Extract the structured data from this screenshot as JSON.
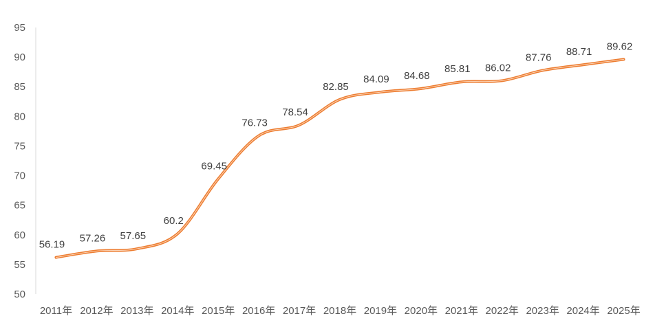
{
  "chart_data": {
    "type": "line",
    "title": "",
    "xlabel": "",
    "ylabel": "",
    "categories": [
      "2011年",
      "2012年",
      "2013年",
      "2014年",
      "2015年",
      "2016年",
      "2017年",
      "2018年",
      "2019年",
      "2020年",
      "2021年",
      "2022年",
      "2023年",
      "2024年",
      "2025年"
    ],
    "series": [
      {
        "values": [
          56.19,
          57.26,
          57.65,
          60.2,
          69.45,
          76.73,
          78.54,
          82.85,
          84.09,
          84.68,
          85.81,
          86.02,
          87.76,
          88.71,
          89.62
        ],
        "labels": [
          "56.19",
          "57.26",
          "57.65",
          "60.2",
          "69.45",
          "76.73",
          "78.54",
          "82.85",
          "84.09",
          "84.68",
          "85.81",
          "86.02",
          "87.76",
          "88.71",
          "89.62"
        ],
        "color": "#ED7D31",
        "smooth": true,
        "data_labels": true
      }
    ],
    "ylim": [
      50,
      95
    ],
    "yticks": [
      50,
      55,
      60,
      65,
      70,
      75,
      80,
      85,
      90,
      95
    ],
    "ytick_labels": [
      "50",
      "55",
      "60",
      "65",
      "70",
      "75",
      "80",
      "85",
      "90",
      "95"
    ],
    "grid": false,
    "legend": "none",
    "colors": {
      "line": "#ED7D31",
      "axis": "#D9D9D9",
      "tick_text": "#595959",
      "label_text": "#404040"
    }
  }
}
